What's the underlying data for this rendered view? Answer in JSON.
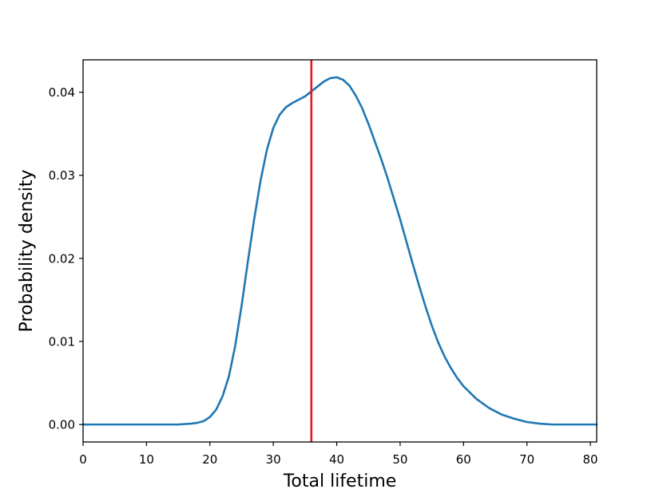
{
  "chart_data": {
    "type": "line",
    "title": "",
    "xlabel": "Total lifetime",
    "ylabel": "Probability density",
    "xlim": [
      0,
      81
    ],
    "ylim": [
      -0.0021,
      0.0439
    ],
    "xticks": [
      0,
      10,
      20,
      30,
      40,
      50,
      60,
      70,
      80
    ],
    "xtick_labels": [
      "0",
      "10",
      "20",
      "30",
      "40",
      "50",
      "60",
      "70",
      "80"
    ],
    "yticks": [
      0.0,
      0.01,
      0.02,
      0.03,
      0.04
    ],
    "ytick_labels": [
      "0.00",
      "0.01",
      "0.02",
      "0.03",
      "0.04"
    ],
    "grid": false,
    "series": [
      {
        "color": "#1f77b4",
        "x": [
          0,
          5,
          10,
          15,
          17,
          18,
          19,
          20,
          21,
          22,
          23,
          24,
          25,
          26,
          27,
          28,
          29,
          30,
          31,
          32,
          33,
          34,
          35,
          36,
          37,
          38,
          39,
          40,
          41,
          42,
          43,
          44,
          45,
          46,
          47,
          48,
          49,
          50,
          51,
          52,
          53,
          54,
          55,
          56,
          57,
          58,
          59,
          60,
          62,
          64,
          66,
          68,
          70,
          72,
          74,
          76,
          78,
          81
        ],
        "y": [
          0.0,
          0.0,
          0.0,
          0.0,
          0.0001,
          0.0002,
          0.0004,
          0.0009,
          0.0018,
          0.0034,
          0.0058,
          0.0095,
          0.0143,
          0.0197,
          0.0248,
          0.0294,
          0.0331,
          0.0357,
          0.0373,
          0.0382,
          0.0387,
          0.0391,
          0.0395,
          0.0401,
          0.0407,
          0.0413,
          0.0417,
          0.0418,
          0.0415,
          0.0408,
          0.0396,
          0.0381,
          0.0362,
          0.0341,
          0.032,
          0.0297,
          0.0272,
          0.0247,
          0.022,
          0.0193,
          0.0167,
          0.0142,
          0.0119,
          0.0099,
          0.0082,
          0.0068,
          0.0056,
          0.0046,
          0.0031,
          0.002,
          0.0012,
          0.0007,
          0.0003,
          0.0001,
          0.0,
          0.0,
          0.0,
          0.0
        ]
      }
    ],
    "vlines": [
      {
        "x": 36,
        "color": "#e31a1c"
      }
    ]
  }
}
